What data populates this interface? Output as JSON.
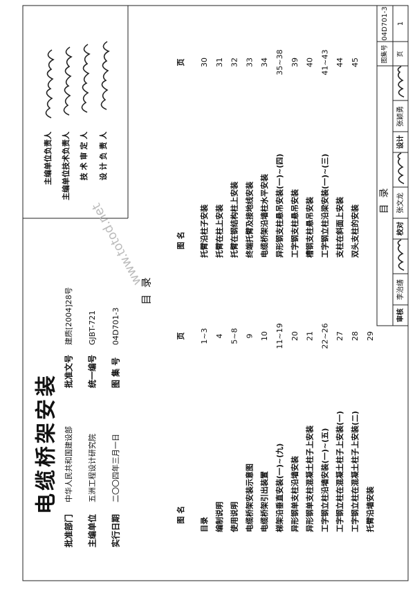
{
  "title": "电缆桥架安装",
  "info": [
    [
      "批准部门",
      "中华人民共和国建设部",
      "批准文号",
      "建质[2004]28号"
    ],
    [
      "主编单位",
      "五洲工程设计研究院",
      "统一编号",
      "GJBT-721"
    ],
    [
      "实行日期",
      "二〇〇四年三月一日",
      "图 集 号",
      "04D701-3"
    ]
  ],
  "signatories": [
    "主编单位负责人",
    "主编单位技术负责人",
    "技 术 审 定 人",
    "设 计 负 责 人"
  ],
  "toc_title": "目  录",
  "toc": {
    "left_header": [
      "图          名",
      "页"
    ],
    "right_header": [
      "图          名",
      "页"
    ],
    "left": [
      [
        "目录",
        "1~3"
      ],
      [
        "编制说明",
        "4"
      ],
      [
        "使用说明",
        "5~8"
      ],
      [
        "电缆桥架安装示意图",
        "9"
      ],
      [
        "电缆桥架引出装置",
        "10"
      ],
      [
        "梯架沿垂直安装(一)~(九)",
        "11~19"
      ],
      [
        "异形钢单支柱沿墙安装",
        "20"
      ],
      [
        "异形钢单支柱混凝土柱子上安装",
        "21"
      ],
      [
        "工字钢立柱沿墙安装(一)~(五)",
        "22~26"
      ],
      [
        "工字钢立柱在混凝土柱子上安装(一)",
        "27"
      ],
      [
        "工字钢立柱在混凝土柱子上安装(二)",
        "28"
      ],
      [
        "托臂沿墙安装",
        "29"
      ]
    ],
    "right": [
      [
        "托臂沿柱子安装",
        "30"
      ],
      [
        "托臂在柱上安装",
        "31"
      ],
      [
        "托臂在钢结构柱上安装",
        "32"
      ],
      [
        "终端托臂及接地线安装",
        "33"
      ],
      [
        "电缆桥架沿墙柱水平安装",
        "34"
      ],
      [
        "异形钢支柱悬吊安装(一)~(四)",
        "35~38"
      ],
      [
        "工字钢支柱悬吊安装",
        "39"
      ],
      [
        "槽钢支柱悬吊安装",
        "40"
      ],
      [
        "工字钢立柱沿梁安装(一)~(三)",
        "41~43"
      ],
      [
        "支柱在斜面上安装",
        "44"
      ],
      [
        "双头支柱的安装",
        "45"
      ]
    ]
  },
  "title_block": {
    "title": "目  录",
    "atlas_label": "图集号",
    "atlas_no": "04D701-3",
    "page_label": "页",
    "page": "1",
    "roles": [
      [
        "审核",
        "李治缮"
      ],
      [
        "校对",
        "张文龙"
      ],
      [
        "设计",
        "张颖勇"
      ]
    ]
  },
  "watermark": "www.totod.net"
}
